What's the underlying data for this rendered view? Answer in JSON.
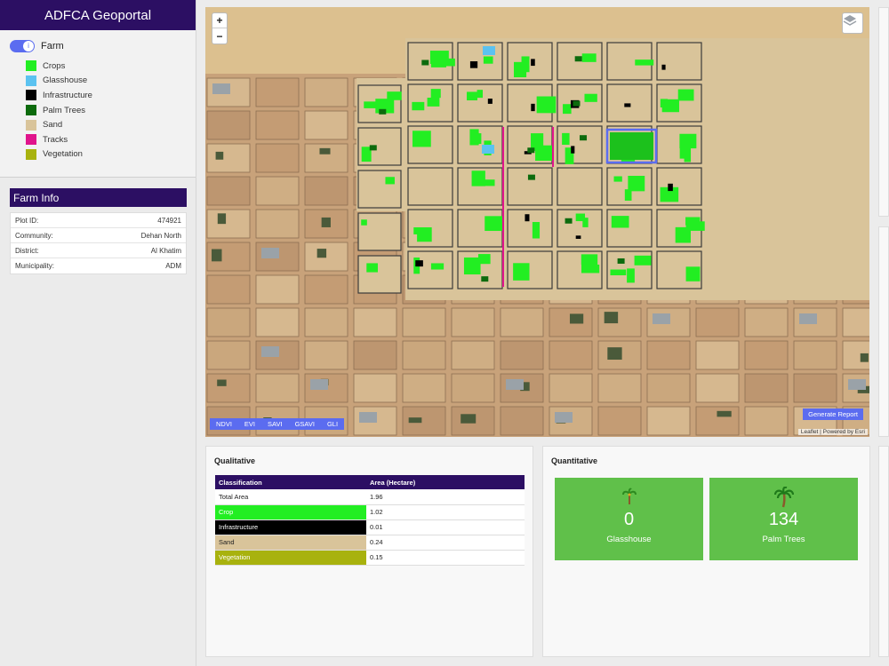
{
  "app": {
    "title": "ADFCA Geoportal"
  },
  "layers": {
    "toggle_label": "Farm",
    "toggle_icon": "i",
    "legend": [
      {
        "label": "Crops",
        "color": "#22ee22"
      },
      {
        "label": "Glasshouse",
        "color": "#5bc2f0"
      },
      {
        "label": "Infrastructure",
        "color": "#000000"
      },
      {
        "label": "Palm Trees",
        "color": "#0d6b0d"
      },
      {
        "label": "Sand",
        "color": "#d9c49a"
      },
      {
        "label": "Tracks",
        "color": "#e0148c"
      },
      {
        "label": "Vegetation",
        "color": "#a8b20e"
      }
    ]
  },
  "farm_info": {
    "title": "Farm Info",
    "rows": [
      {
        "label": "Plot ID:",
        "value": "474921"
      },
      {
        "label": "Community:",
        "value": "Dehan North"
      },
      {
        "label": "District:",
        "value": "Al Khatim"
      },
      {
        "label": "Municipality:",
        "value": "ADM"
      }
    ]
  },
  "map": {
    "zoom_in": "+",
    "zoom_out": "−",
    "indices": [
      "NDVI",
      "EVI",
      "SAVI",
      "GSAVI",
      "GLI"
    ],
    "report_button": "Generate Report",
    "attribution": "Leaflet | Powered by Esri"
  },
  "qualitative": {
    "title": "Qualitative",
    "headers": [
      "Classification",
      "Area (Hectare)"
    ],
    "rows": [
      {
        "label": "Total Area",
        "value": "1.96",
        "color": "#ffffff",
        "text": "#222222"
      },
      {
        "label": "Crop",
        "value": "1.02",
        "color": "#22ee22",
        "text": "#ffffff"
      },
      {
        "label": "Infrastructure",
        "value": "0.01",
        "color": "#000000",
        "text": "#ffffff"
      },
      {
        "label": "Sand",
        "value": "0.24",
        "color": "#d9c49a",
        "text": "#222222"
      },
      {
        "label": "Vegetation",
        "value": "0.15",
        "color": "#a8b20e",
        "text": "#ffffff"
      }
    ]
  },
  "quantitative": {
    "title": "Quantitative",
    "cards": [
      {
        "value": "0",
        "label": "Glasshouse",
        "icon": "palm-sprout-icon"
      },
      {
        "value": "134",
        "label": "Palm Trees",
        "icon": "palm-tree-icon"
      }
    ]
  }
}
